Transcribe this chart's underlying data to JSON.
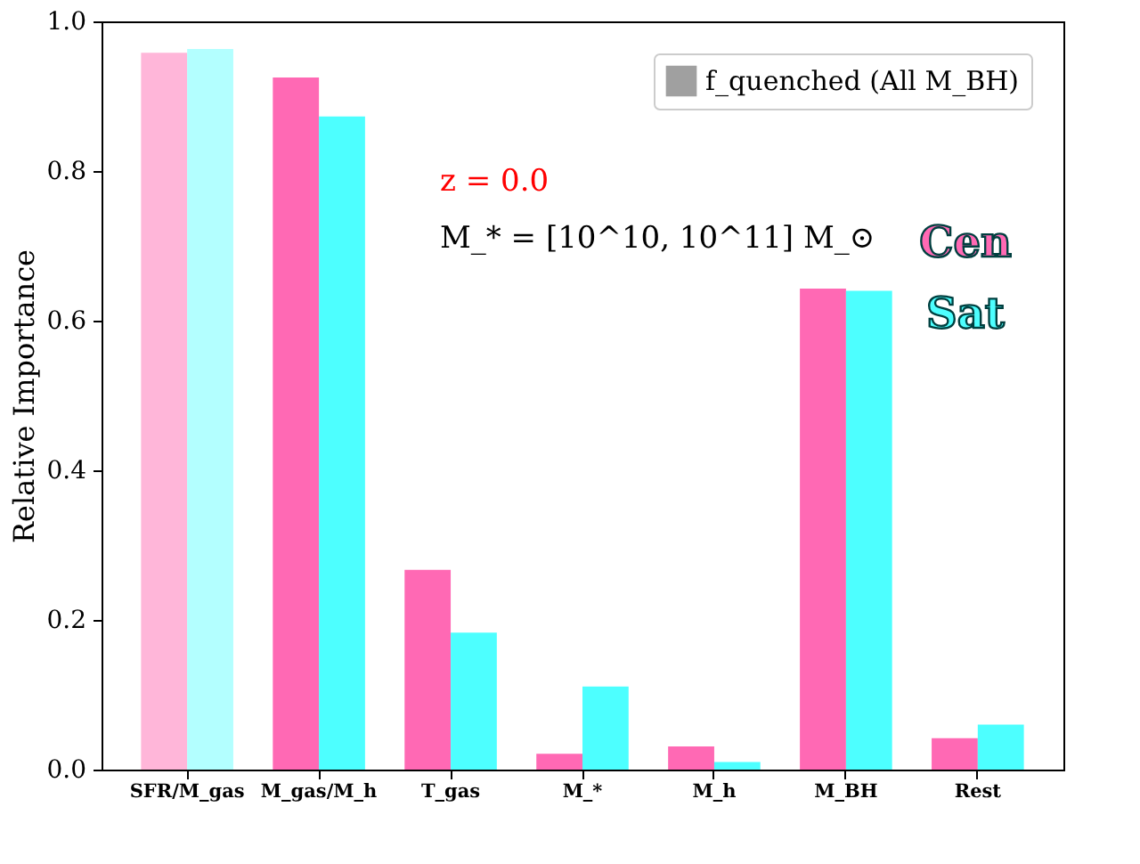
{
  "chart_data": {
    "type": "bar",
    "ylabel": "Relative Importance",
    "categories": [
      "SFR/M_gas",
      "M_gas/M_h",
      "T_gas",
      "M_*",
      "M_h",
      "M_BH",
      "Rest"
    ],
    "series": [
      {
        "name": "Cen",
        "color": "#ff69b4",
        "colors": [
          "#ffb6d9",
          "#ff69b4",
          "#ff69b4",
          "#ff69b4",
          "#ff69b4",
          "#ff69b4",
          "#ff69b4"
        ],
        "values": [
          0.958,
          0.925,
          0.267,
          0.021,
          0.031,
          0.643,
          0.042
        ]
      },
      {
        "name": "Sat",
        "color": "#4dffff",
        "colors": [
          "#b3ffff",
          "#4dffff",
          "#4dffff",
          "#4dffff",
          "#4dffff",
          "#4dffff",
          "#4dffff"
        ],
        "values": [
          0.963,
          0.873,
          0.183,
          0.111,
          0.01,
          0.64,
          0.06
        ]
      },
      {
        "name": "f_quenched (All M_BH)",
        "color": "#a0a0a0",
        "values": [
          null,
          null,
          null,
          null,
          null,
          null,
          null
        ]
      }
    ],
    "annotations": [
      "z = 0.0",
      "M_* = [10^10, 10^11] M_⊙"
    ],
    "ylim": [
      0,
      1
    ],
    "yticks": [
      {
        "value": 0,
        "label": "0.0"
      },
      0.2,
      0.4,
      0.6,
      0.8,
      {
        "value": 1,
        "label": "1.0"
      }
    ],
    "grid": false,
    "legend": "top right"
  }
}
